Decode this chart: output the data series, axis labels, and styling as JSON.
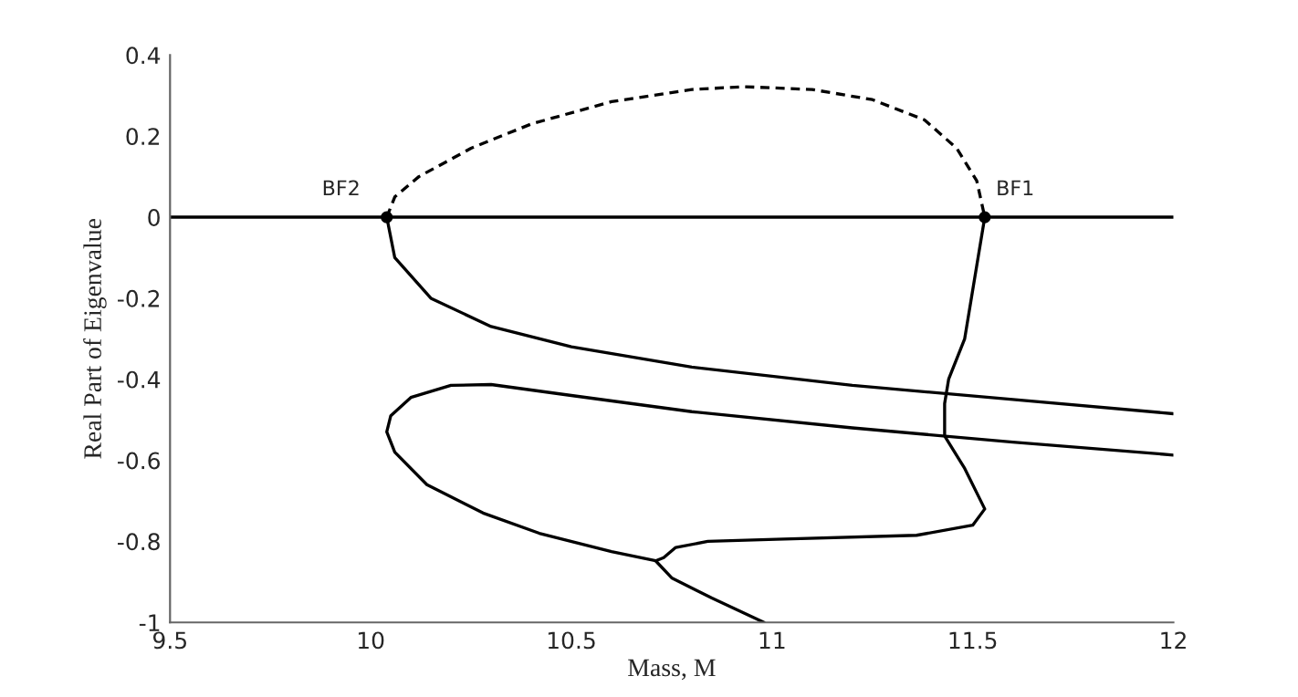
{
  "chart_data": {
    "type": "line",
    "xlabel": "Mass, M",
    "ylabel": "Real Part of Eigenvalue",
    "xlim": [
      9.5,
      12
    ],
    "ylim": [
      -1,
      0.4
    ],
    "xticks": [
      9.5,
      10,
      10.5,
      11,
      11.5,
      12
    ],
    "yticks": [
      -1,
      -0.8,
      -0.6,
      -0.4,
      -0.2,
      0,
      0.2,
      0.4
    ],
    "grid": false,
    "legend": false,
    "marker": "none",
    "series": [
      {
        "color": "#000000",
        "line_style": "solid",
        "x": [
          9.5,
          12
        ],
        "values": [
          0,
          0
        ]
      },
      {
        "color": "#000000",
        "line_style": "dashed",
        "x": [
          10.04,
          10.06,
          10.12,
          10.25,
          10.4,
          10.6,
          10.8,
          10.93,
          11.1,
          11.25,
          11.38,
          11.46,
          11.51,
          11.53
        ],
        "values": [
          0,
          0.05,
          0.1,
          0.17,
          0.23,
          0.285,
          0.315,
          0.322,
          0.315,
          0.29,
          0.24,
          0.17,
          0.09,
          0
        ]
      },
      {
        "color": "#000000",
        "line_style": "solid",
        "x": [
          10.04,
          10.06,
          10.15,
          10.3,
          10.5,
          10.8,
          11.2,
          11.6,
          12
        ],
        "values": [
          0,
          -0.1,
          -0.2,
          -0.27,
          -0.32,
          -0.37,
          -0.415,
          -0.45,
          -0.485
        ]
      },
      {
        "color": "#000000",
        "line_style": "solid",
        "x": [
          12,
          11.6,
          11.2,
          10.8,
          10.5,
          10.3,
          10.2,
          10.1,
          10.05,
          10.04,
          10.06,
          10.14,
          10.28,
          10.42,
          10.6,
          10.71,
          10.75,
          10.85,
          10.98
        ],
        "values": [
          -0.587,
          -0.555,
          -0.52,
          -0.48,
          -0.44,
          -0.413,
          -0.415,
          -0.445,
          -0.49,
          -0.53,
          -0.58,
          -0.66,
          -0.73,
          -0.78,
          -0.825,
          -0.848,
          -0.89,
          -0.94,
          -1.0
        ]
      },
      {
        "color": "#000000",
        "line_style": "solid",
        "x": [
          11.53,
          11.51,
          11.48,
          11.44,
          11.43,
          11.43,
          11.48,
          11.53,
          11.5,
          11.36,
          11.01,
          10.84,
          10.76,
          10.73,
          10.71
        ],
        "values": [
          0,
          -0.12,
          -0.3,
          -0.4,
          -0.46,
          -0.54,
          -0.62,
          -0.72,
          -0.76,
          -0.785,
          -0.795,
          -0.8,
          -0.815,
          -0.84,
          -0.848
        ]
      },
      {
        "type": "scatter",
        "color": "#000000",
        "marker": "circle",
        "x": [
          10.04,
          11.53
        ],
        "values": [
          0,
          0
        ]
      }
    ],
    "annotations": [
      {
        "text": "BF2",
        "x": 10.04,
        "y": 0
      },
      {
        "text": "BF1",
        "x": 11.53,
        "y": 0
      }
    ]
  }
}
